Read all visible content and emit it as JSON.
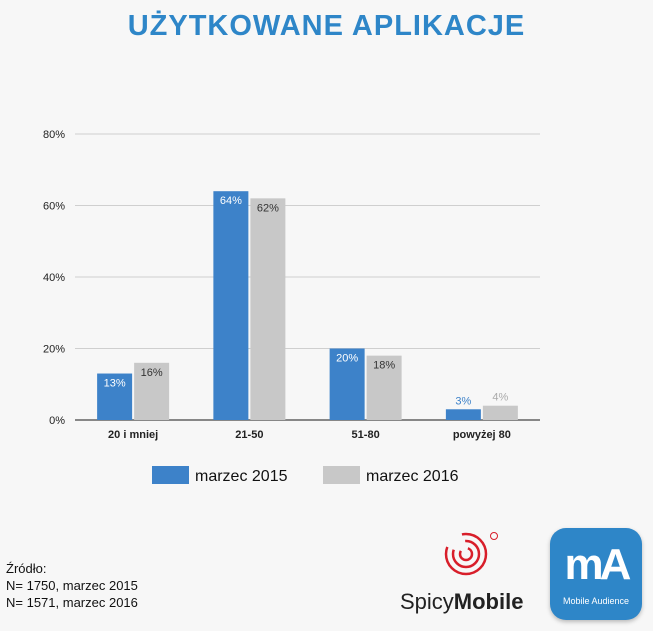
{
  "title": "UŻYTKOWANE APLIKACJE",
  "chart_data": {
    "type": "bar",
    "categories": [
      "20 i mniej",
      "21-50",
      "51-80",
      "powyżej 80"
    ],
    "series": [
      {
        "name": "marzec 2015",
        "values": [
          13,
          64,
          20,
          3
        ],
        "labels": [
          "13%",
          "64%",
          "20%",
          "3%"
        ],
        "color": "#3d82c9"
      },
      {
        "name": "marzec 2016",
        "values": [
          16,
          62,
          18,
          4
        ],
        "labels": [
          "16%",
          "62%",
          "18%",
          "4%"
        ],
        "color": "#c8c8c8"
      }
    ],
    "y_ticks": [
      "0%",
      "20%",
      "40%",
      "60%",
      "80%"
    ],
    "ylim": [
      0,
      80
    ],
    "grid": true,
    "legend": "bottom"
  },
  "source": {
    "heading": "Źródło:",
    "lines": [
      "N= 1750, marzec 2015",
      "N= 1571, marzec 2016"
    ]
  },
  "logos": {
    "spicy_part1": "Spicy",
    "spicy_part2": "Mobile",
    "ma_mark": "mA",
    "ma_caption": "Mobile Audience"
  }
}
